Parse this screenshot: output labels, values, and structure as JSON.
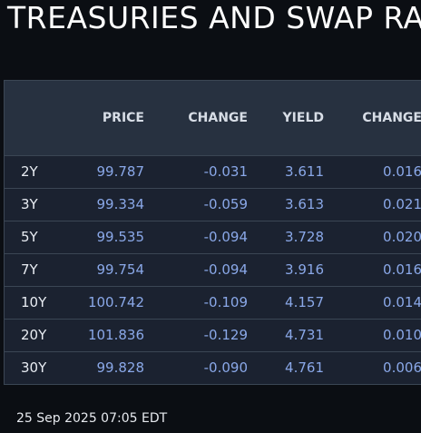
{
  "title": "TREASURIES AND SWAP RA",
  "table": {
    "columns": [
      "",
      "PRICE",
      "CHANGE",
      "YIELD",
      "CHANGE"
    ],
    "rows": [
      {
        "tenor": "2Y",
        "price": "99.787",
        "price_change": "-0.031",
        "yield": "3.611",
        "yield_change": "0.016"
      },
      {
        "tenor": "3Y",
        "price": "99.334",
        "price_change": "-0.059",
        "yield": "3.613",
        "yield_change": "0.021"
      },
      {
        "tenor": "5Y",
        "price": "99.535",
        "price_change": "-0.094",
        "yield": "3.728",
        "yield_change": "0.020"
      },
      {
        "tenor": "7Y",
        "price": "99.754",
        "price_change": "-0.094",
        "yield": "3.916",
        "yield_change": "0.016"
      },
      {
        "tenor": "10Y",
        "price": "100.742",
        "price_change": "-0.109",
        "yield": "4.157",
        "yield_change": "0.014"
      },
      {
        "tenor": "20Y",
        "price": "101.836",
        "price_change": "-0.129",
        "yield": "4.731",
        "yield_change": "0.010"
      },
      {
        "tenor": "30Y",
        "price": "99.828",
        "price_change": "-0.090",
        "yield": "4.761",
        "yield_change": "0.006"
      }
    ]
  },
  "timestamp": "25 Sep 2025 07:05 EDT",
  "colors": {
    "background": "#0b0e13",
    "header_bg": "#273140",
    "row_bg": "#1b2230",
    "value_text": "#8aa8e8",
    "tenor_text": "#e8ecf2"
  }
}
